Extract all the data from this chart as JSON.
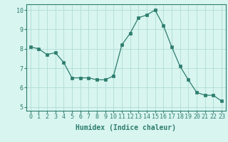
{
  "x": [
    0,
    1,
    2,
    3,
    4,
    5,
    6,
    7,
    8,
    9,
    10,
    11,
    12,
    13,
    14,
    15,
    16,
    17,
    18,
    19,
    20,
    21,
    22,
    23
  ],
  "y": [
    8.1,
    8.0,
    7.7,
    7.8,
    7.3,
    6.5,
    6.5,
    6.5,
    6.4,
    6.4,
    6.6,
    8.2,
    8.8,
    9.6,
    9.75,
    10.0,
    9.2,
    8.1,
    7.1,
    6.4,
    5.75,
    5.6,
    5.6,
    5.3
  ],
  "line_color": "#2d7d6e",
  "marker": "s",
  "marker_size": 2.5,
  "bg_color": "#d8f5f0",
  "grid_color": "#b0ddd4",
  "xlabel": "Humidex (Indice chaleur)",
  "xlim": [
    -0.5,
    23.5
  ],
  "ylim": [
    4.8,
    10.3
  ],
  "yticks": [
    5,
    6,
    7,
    8,
    9,
    10
  ],
  "xticks": [
    0,
    1,
    2,
    3,
    4,
    5,
    6,
    7,
    8,
    9,
    10,
    11,
    12,
    13,
    14,
    15,
    16,
    17,
    18,
    19,
    20,
    21,
    22,
    23
  ],
  "label_fontsize": 7,
  "tick_fontsize": 6
}
